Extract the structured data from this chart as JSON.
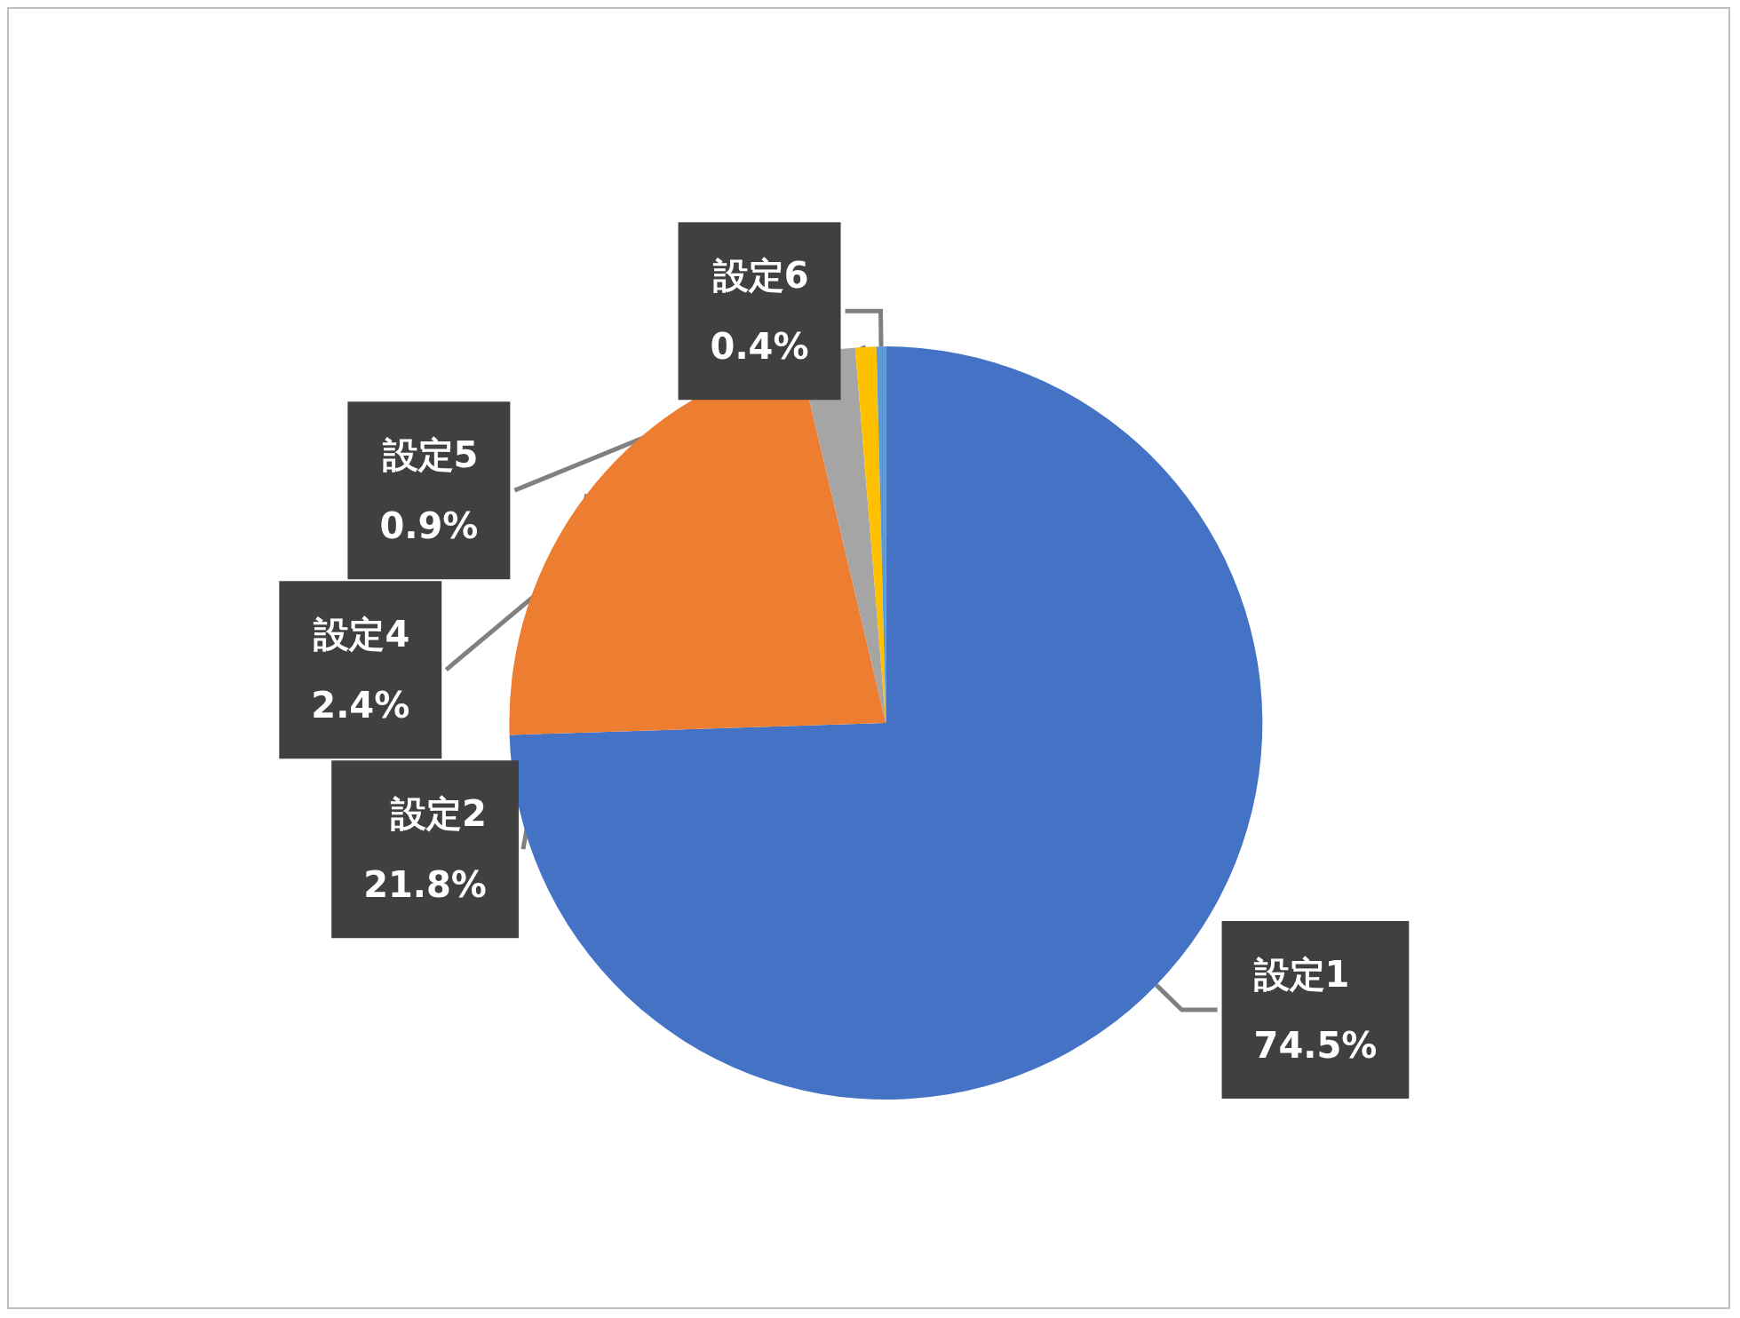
{
  "chart_data": {
    "type": "pie",
    "categories": [
      "設定1",
      "設定2",
      "設定4",
      "設定5",
      "設定6"
    ],
    "values": [
      74.5,
      21.8,
      2.4,
      0.9,
      0.4
    ],
    "value_labels": [
      "74.5%",
      "21.8%",
      "2.4%",
      "0.9%",
      "0.4%"
    ],
    "colors": [
      "#4472c4",
      "#ed7d31",
      "#a5a5a5",
      "#ffc000",
      "#5b9bd5"
    ],
    "legend": false
  }
}
